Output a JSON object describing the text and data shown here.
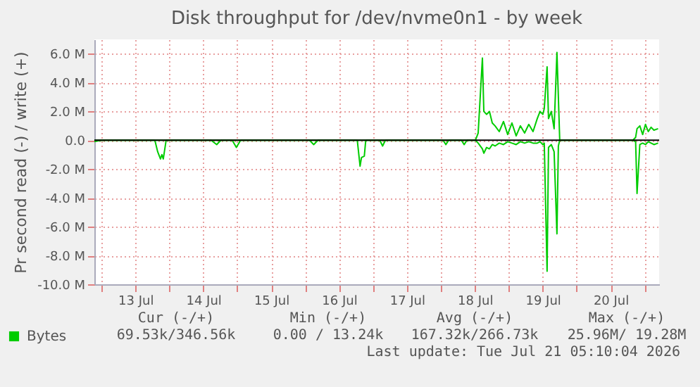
{
  "chart_data": {
    "type": "line",
    "title": "Disk throughput for /dev/nvme0n1 - by week",
    "ylabel": "Pr second read (-) / write (+)",
    "xlim": [
      "2026-07-12T21:30",
      "2026-07-21T05:10"
    ],
    "xticks": [
      {
        "value": "2026-07-13T00:00",
        "label": null
      },
      {
        "value": "2026-07-13T12:00",
        "label": "13 Jul"
      },
      {
        "value": "2026-07-14T00:00",
        "label": null
      },
      {
        "value": "2026-07-14T12:00",
        "label": "14 Jul"
      },
      {
        "value": "2026-07-15T00:00",
        "label": null
      },
      {
        "value": "2026-07-15T12:00",
        "label": "15 Jul"
      },
      {
        "value": "2026-07-16T00:00",
        "label": null
      },
      {
        "value": "2026-07-16T12:00",
        "label": "16 Jul"
      },
      {
        "value": "2026-07-17T00:00",
        "label": null
      },
      {
        "value": "2026-07-17T12:00",
        "label": "17 Jul"
      },
      {
        "value": "2026-07-18T00:00",
        "label": null
      },
      {
        "value": "2026-07-18T12:00",
        "label": "18 Jul"
      },
      {
        "value": "2026-07-19T00:00",
        "label": null
      },
      {
        "value": "2026-07-19T12:00",
        "label": "19 Jul"
      },
      {
        "value": "2026-07-20T00:00",
        "label": null
      },
      {
        "value": "2026-07-20T12:00",
        "label": "20 Jul"
      },
      {
        "value": "2026-07-21T00:00",
        "label": null
      }
    ],
    "ylim": [
      -10,
      7
    ],
    "yticks": [
      {
        "value": -10,
        "label": "-10.0 M"
      },
      {
        "value": -8,
        "label": "-8.0 M"
      },
      {
        "value": -6,
        "label": "-6.0 M"
      },
      {
        "value": -4,
        "label": "-4.0 M"
      },
      {
        "value": -2,
        "label": "-2.0 M"
      },
      {
        "value": 0,
        "label": "0.0"
      },
      {
        "value": 2,
        "label": "2.0 M"
      },
      {
        "value": 4,
        "label": "4.0 M"
      },
      {
        "value": 6,
        "label": "6.0 M"
      }
    ],
    "x": [
      "2026-07-12T21:30",
      "2026-07-13T00:00",
      "2026-07-13T13:55",
      "2026-07-13T18:53",
      "2026-07-13T19:53",
      "2026-07-13T20:52",
      "2026-07-13T21:22",
      "2026-07-13T21:52",
      "2026-07-13T22:52",
      "2026-07-14T14:46",
      "2026-07-14T16:45",
      "2026-07-14T18:14",
      "2026-07-14T19:44",
      "2026-07-14T22:13",
      "2026-07-14T23:42",
      "2026-07-15T01:12",
      "2026-07-15T15:36",
      "2026-07-16T01:33",
      "2026-07-16T03:03",
      "2026-07-16T04:32",
      "2026-07-16T16:28",
      "2026-07-16T18:27",
      "2026-07-16T19:26",
      "2026-07-16T19:56",
      "2026-07-16T20:56",
      "2026-07-16T21:26",
      "2026-07-16T22:55",
      "2026-07-17T02:24",
      "2026-07-17T03:24",
      "2026-07-17T04:23",
      "2026-07-17T17:19",
      "2026-07-18T00:46",
      "2026-07-18T01:46",
      "2026-07-18T02:45",
      "2026-07-18T07:14",
      "2026-07-18T08:14",
      "2026-07-18T09:13",
      "2026-07-18T12:12",
      "2026-07-18T13:11",
      "2026-07-18T14:41",
      "2026-07-18T15:11",
      "2026-07-18T16:10",
      "2026-07-18T17:10",
      "2026-07-18T18:10",
      "2026-07-18T19:09",
      "2026-07-18T20:38",
      "2026-07-18T22:08",
      "2026-07-18T23:37",
      "2026-07-19T01:07",
      "2026-07-19T02:37",
      "2026-07-19T04:06",
      "2026-07-19T05:36",
      "2026-07-19T07:05",
      "2026-07-19T08:35",
      "2026-07-19T10:04",
      "2026-07-19T11:04",
      "2026-07-19T12:03",
      "2026-07-19T12:33",
      "2026-07-19T13:33",
      "2026-07-19T14:03",
      "2026-07-19T15:02",
      "2026-07-19T16:02",
      "2026-07-19T17:02",
      "2026-07-19T17:32",
      "2026-07-19T18:01",
      "2026-07-19T19:01",
      "2026-07-20T09:55",
      "2026-07-20T19:52",
      "2026-07-20T20:51",
      "2026-07-20T21:21",
      "2026-07-20T22:20",
      "2026-07-20T23:20",
      "2026-07-21T00:20",
      "2026-07-21T01:19",
      "2026-07-21T02:19",
      "2026-07-21T03:19",
      "2026-07-21T04:48"
    ],
    "series": [
      {
        "name": "Bytes",
        "color": "#00cc00",
        "values": [
          0,
          0,
          0,
          0,
          0,
          0,
          0,
          0,
          0,
          0,
          0,
          0,
          0,
          0,
          0,
          0,
          0,
          0,
          0,
          0,
          0,
          0,
          0,
          0,
          0,
          0,
          0,
          0,
          0,
          0,
          0,
          0,
          0,
          0,
          0,
          0,
          0,
          0,
          0.5,
          5.7,
          2.0,
          1.8,
          2.0,
          1.2,
          1.0,
          0.6,
          1.3,
          0.4,
          1.2,
          0.3,
          1.0,
          0.5,
          1.1,
          0.6,
          1.5,
          2.0,
          1.8,
          2.2,
          5.1,
          1.5,
          2.0,
          0.8,
          6.1,
          3.0,
          0,
          0,
          0,
          0,
          0.2,
          0.8,
          1.0,
          0.4,
          1.1,
          0.6,
          0.9,
          0.7,
          0.8
        ]
      },
      {
        "color": "#00cc00",
        "values": [
          -0.1,
          0,
          0,
          0,
          -0.8,
          -1.3,
          -1.0,
          -1.3,
          0,
          0,
          -0.3,
          0,
          0,
          0,
          -0.5,
          0,
          0,
          0,
          -0.3,
          0,
          0,
          0,
          -1.8,
          -1.2,
          -1.1,
          0,
          0,
          0,
          -0.4,
          0,
          0,
          0,
          -0.3,
          0,
          0,
          -0.3,
          0,
          0,
          -0.2,
          -0.6,
          -0.9,
          -0.5,
          -0.6,
          -0.3,
          -0.4,
          -0.2,
          -0.3,
          -0.1,
          -0.2,
          -0.3,
          -0.1,
          -0.2,
          -0.1,
          -0.2,
          -0.2,
          -0.1,
          -0.3,
          -0.2,
          -9.1,
          -0.5,
          -0.3,
          -0.8,
          -6.5,
          -0.4,
          0,
          0,
          0,
          0,
          -0.1,
          -3.7,
          -0.3,
          -0.2,
          -0.3,
          -0.1,
          -0.2,
          -0.3,
          -0.2
        ]
      }
    ],
    "ref_lines": [
      {
        "axis": "y",
        "value": 0,
        "color": "#000000"
      }
    ],
    "grid": true,
    "legend": "bottom left",
    "annotations": [
      "Cur (-/+)",
      "Min (-/+)",
      "Avg (-/+)",
      "Max (-/+)",
      "69.53k/346.56k",
      "0.00 / 13.24k",
      "167.32k/266.73k",
      "25.96M/ 19.28M",
      "Last update: Tue Jul 21 05:10:04 2026"
    ]
  }
}
